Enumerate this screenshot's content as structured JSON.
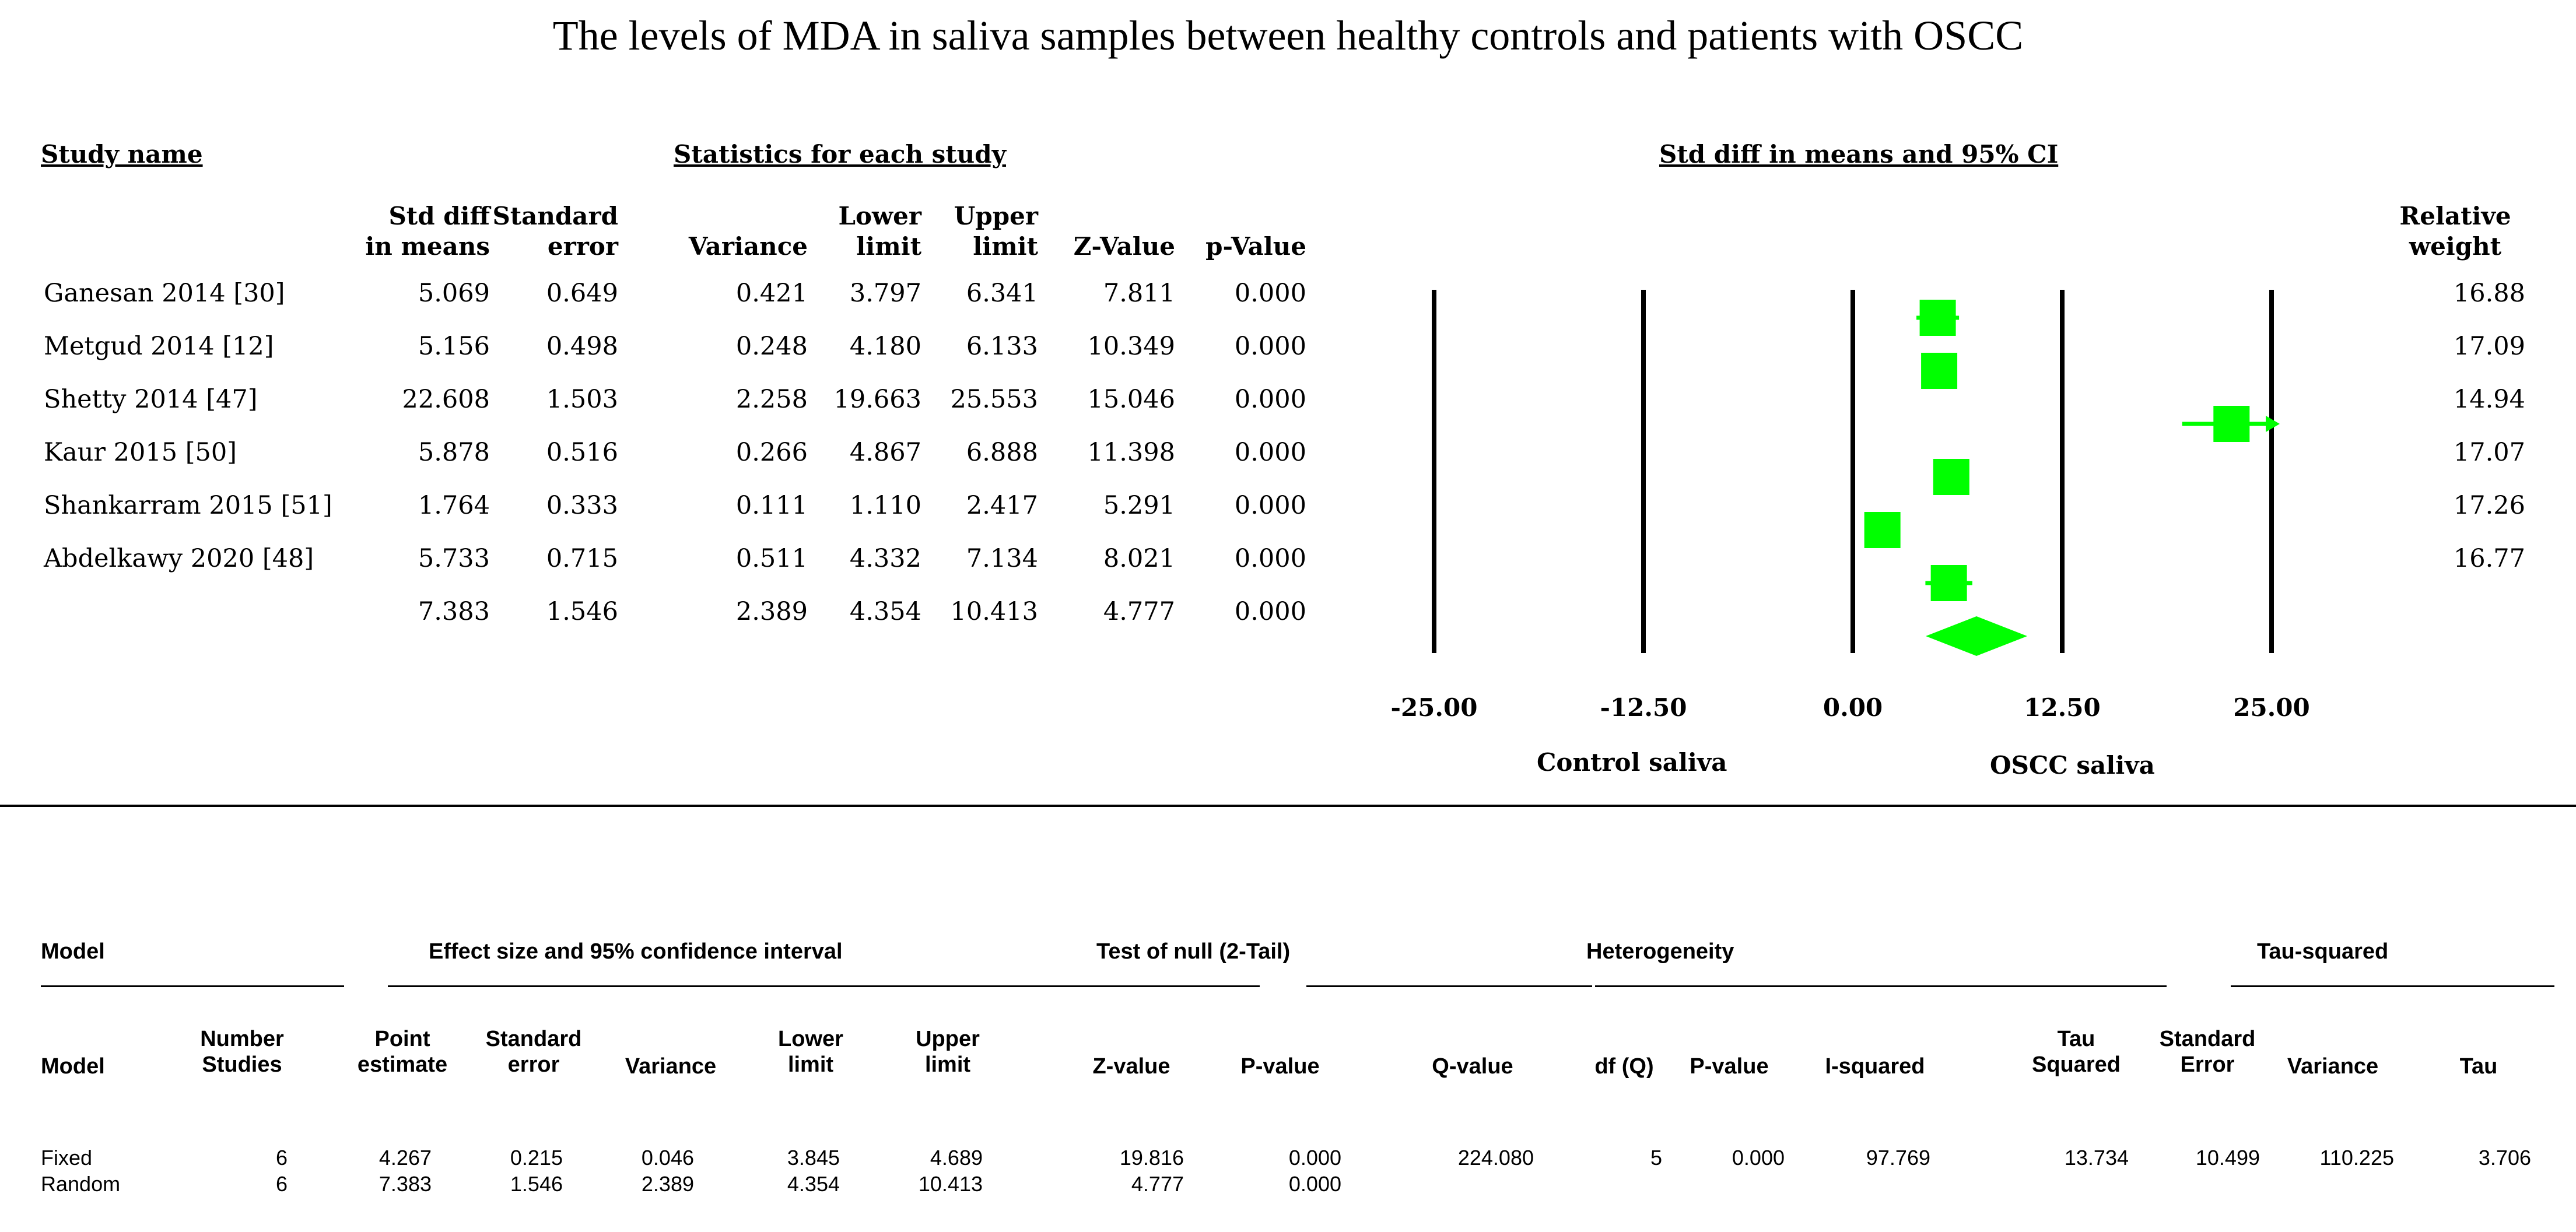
{
  "title": "The levels of MDA in saliva samples between healthy controls and patients with OSCC",
  "top_table": {
    "group_headers": {
      "study_name": "Study name",
      "statistics": "Statistics for each study",
      "plot": "Std diff in means and 95% CI"
    },
    "columns": [
      [
        "Std diff",
        "in means"
      ],
      [
        "Standard",
        "error"
      ],
      [
        "Variance"
      ],
      [
        "Lower",
        "limit"
      ],
      [
        "Upper",
        "limit"
      ],
      [
        "Z-Value"
      ],
      [
        "p-Value"
      ]
    ],
    "weight_header": [
      "Relative",
      "weight"
    ],
    "rows": [
      {
        "name": "Ganesan 2014 [30]",
        "values": [
          "5.069",
          "0.649",
          "0.421",
          "3.797",
          "6.341",
          "7.811",
          "0.000"
        ],
        "weight": "16.88"
      },
      {
        "name": "Metgud 2014 [12]",
        "values": [
          "5.156",
          "0.498",
          "0.248",
          "4.180",
          "6.133",
          "10.349",
          "0.000"
        ],
        "weight": "17.09"
      },
      {
        "name": "Shetty 2014 [47]",
        "values": [
          "22.608",
          "1.503",
          "2.258",
          "19.663",
          "25.553",
          "15.046",
          "0.000"
        ],
        "weight": "14.94"
      },
      {
        "name": "Kaur 2015 [50]",
        "values": [
          "5.878",
          "0.516",
          "0.266",
          "4.867",
          "6.888",
          "11.398",
          "0.000"
        ],
        "weight": "17.07"
      },
      {
        "name": "Shankarram 2015 [51]",
        "values": [
          "1.764",
          "0.333",
          "0.111",
          "1.110",
          "2.417",
          "5.291",
          "0.000"
        ],
        "weight": "17.26"
      },
      {
        "name": "Abdelkawy 2020 [48]",
        "values": [
          "5.733",
          "0.715",
          "0.511",
          "4.332",
          "7.134",
          "8.021",
          "0.000"
        ],
        "weight": "16.77"
      }
    ],
    "summary": {
      "name": "",
      "values": [
        "7.383",
        "1.546",
        "2.389",
        "4.354",
        "10.413",
        "4.777",
        "0.000"
      ]
    }
  },
  "chart_data": {
    "type": "forest",
    "x_ticks": [
      "-25.00",
      "-12.50",
      "0.00",
      "12.50",
      "25.00"
    ],
    "x_tick_values": [
      -25,
      -12.5,
      0,
      12.5,
      25
    ],
    "xlim": [
      -25,
      25
    ],
    "left_label": "Control saliva",
    "right_label": "OSCC saliva",
    "marker_color": "#00ff00",
    "studies": [
      {
        "name": "Ganesan 2014 [30]",
        "estimate": 5.069,
        "lower": 3.797,
        "upper": 6.341,
        "weight": 16.88
      },
      {
        "name": "Metgud 2014 [12]",
        "estimate": 5.156,
        "lower": 4.18,
        "upper": 6.133,
        "weight": 17.09
      },
      {
        "name": "Shetty 2014 [47]",
        "estimate": 22.608,
        "lower": 19.663,
        "upper": 25.553,
        "weight": 14.94
      },
      {
        "name": "Kaur 2015 [50]",
        "estimate": 5.878,
        "lower": 4.867,
        "upper": 6.888,
        "weight": 17.07
      },
      {
        "name": "Shankarram 2015 [51]",
        "estimate": 1.764,
        "lower": 1.11,
        "upper": 2.417,
        "weight": 17.26
      },
      {
        "name": "Abdelkawy 2020 [48]",
        "estimate": 5.733,
        "lower": 4.332,
        "upper": 7.134,
        "weight": 16.77
      }
    ],
    "pooled": {
      "estimate": 7.383,
      "lower": 4.354,
      "upper": 10.413
    }
  },
  "bottom_table": {
    "group_headers": {
      "model": "Model",
      "effect": "Effect size and 95% confidence interval",
      "null": "Test of null (2-Tail)",
      "het": "Heterogeneity",
      "tau": "Tau-squared"
    },
    "columns": [
      [
        "Model"
      ],
      [
        "Number",
        "Studies"
      ],
      [
        "Point",
        "estimate"
      ],
      [
        "Standard",
        "error"
      ],
      [
        "Variance"
      ],
      [
        "Lower",
        "limit"
      ],
      [
        "Upper",
        "limit"
      ],
      [
        "Z-value"
      ],
      [
        "P-value"
      ],
      [
        "Q-value"
      ],
      [
        "df (Q)"
      ],
      [
        "P-value"
      ],
      [
        "I-squared"
      ],
      [
        "Tau",
        "Squared"
      ],
      [
        "Standard",
        "Error"
      ],
      [
        "Variance"
      ],
      [
        "Tau"
      ]
    ],
    "rows": [
      [
        "Fixed",
        "6",
        "4.267",
        "0.215",
        "0.046",
        "3.845",
        "4.689",
        "19.816",
        "0.000",
        "224.080",
        "5",
        "0.000",
        "97.769",
        "13.734",
        "10.499",
        "110.225",
        "3.706"
      ],
      [
        "Random",
        "6",
        "7.383",
        "1.546",
        "2.389",
        "4.354",
        "10.413",
        "4.777",
        "0.000",
        "",
        "",
        "",
        "",
        "",
        "",
        "",
        ""
      ]
    ]
  }
}
